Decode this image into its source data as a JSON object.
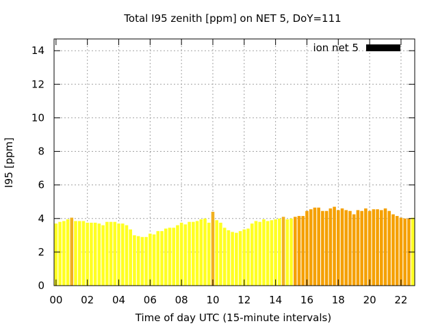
{
  "chart_data": {
    "type": "bar",
    "title": "Total I95 zenith [ppm] on NET 5, DoY=111",
    "xlabel": "Time of day UTC (15-minute intervals)",
    "ylabel": "I95 [ppm]",
    "xlim": [
      0,
      22.75
    ],
    "ylim": [
      0,
      14.7
    ],
    "x_ticks": [
      "00",
      "02",
      "04",
      "06",
      "08",
      "10",
      "12",
      "14",
      "16",
      "18",
      "20",
      "22"
    ],
    "x_tick_values": [
      0,
      2,
      4,
      6,
      8,
      10,
      12,
      14,
      16,
      18,
      20,
      22
    ],
    "y_ticks": [
      "0",
      "2",
      "4",
      "6",
      "8",
      "10",
      "12",
      "14"
    ],
    "y_tick_values": [
      0,
      2,
      4,
      6,
      8,
      10,
      12,
      14
    ],
    "grid": true,
    "legend": {
      "label": "ion net 5",
      "position": "top-right",
      "color": "#000000"
    },
    "colors": {
      "low": "#ffff22",
      "mid": "#f0b020",
      "high": "#f5a000"
    },
    "series": [
      {
        "x": [
          0,
          0.25,
          0.5,
          0.75,
          1,
          1.25,
          1.5,
          1.75,
          2,
          2.25,
          2.5,
          2.75,
          3,
          3.25,
          3.5,
          3.75,
          4,
          4.25,
          4.5,
          4.75,
          5,
          5.25,
          5.5,
          5.75,
          6,
          6.25,
          6.5,
          6.75,
          7,
          7.25,
          7.5,
          7.75,
          8,
          8.25,
          8.5,
          8.75,
          9,
          9.25,
          9.5,
          9.75,
          10,
          10.25,
          10.5,
          10.75,
          11,
          11.25,
          11.5,
          11.75,
          12,
          12.25,
          12.5,
          12.75,
          13,
          13.25,
          13.5,
          13.75,
          14,
          14.25,
          14.5,
          14.75,
          15,
          15.25,
          15.5,
          15.75,
          16,
          16.25,
          16.5,
          16.75,
          17,
          17.25,
          17.5,
          17.75,
          18,
          18.25,
          18.5,
          18.75,
          19,
          19.25,
          19.5,
          19.75,
          20,
          20.25,
          20.5,
          20.75,
          21,
          21.25,
          21.5,
          21.75,
          22,
          22.25,
          22.5,
          22.75
        ],
        "values": [
          3.7,
          3.8,
          3.85,
          3.95,
          4.05,
          3.85,
          3.85,
          3.85,
          3.75,
          3.75,
          3.75,
          3.7,
          3.6,
          3.8,
          3.8,
          3.8,
          3.7,
          3.7,
          3.6,
          3.35,
          3.0,
          2.95,
          2.9,
          2.9,
          3.1,
          3.05,
          3.25,
          3.25,
          3.4,
          3.45,
          3.45,
          3.6,
          3.75,
          3.65,
          3.8,
          3.8,
          3.85,
          3.95,
          4.0,
          3.75,
          4.4,
          3.9,
          3.75,
          3.45,
          3.3,
          3.2,
          3.15,
          3.25,
          3.35,
          3.4,
          3.7,
          3.85,
          3.8,
          3.95,
          3.85,
          3.9,
          3.95,
          4.0,
          4.1,
          3.95,
          4.0,
          4.1,
          4.15,
          4.15,
          4.45,
          4.55,
          4.65,
          4.65,
          4.45,
          4.45,
          4.6,
          4.7,
          4.5,
          4.6,
          4.5,
          4.45,
          4.25,
          4.5,
          4.45,
          4.6,
          4.45,
          4.55,
          4.55,
          4.5,
          4.6,
          4.45,
          4.25,
          4.15,
          4.05,
          4.0,
          4.0,
          4.05
        ],
        "colors": [
          "low",
          "low",
          "low",
          "low",
          "mid",
          "low",
          "low",
          "low",
          "low",
          "low",
          "low",
          "low",
          "low",
          "low",
          "low",
          "low",
          "low",
          "low",
          "low",
          "low",
          "low",
          "low",
          "low",
          "low",
          "low",
          "low",
          "low",
          "low",
          "low",
          "low",
          "low",
          "low",
          "low",
          "low",
          "low",
          "low",
          "low",
          "low",
          "low",
          "low",
          "mid",
          "low",
          "low",
          "low",
          "low",
          "low",
          "low",
          "low",
          "low",
          "low",
          "low",
          "low",
          "low",
          "low",
          "low",
          "low",
          "low",
          "low",
          "mid",
          "low",
          "low",
          "high",
          "high",
          "high",
          "high",
          "high",
          "high",
          "high",
          "high",
          "high",
          "high",
          "high",
          "high",
          "high",
          "high",
          "high",
          "high",
          "high",
          "high",
          "high",
          "high",
          "high",
          "high",
          "high",
          "high",
          "high",
          "high",
          "high",
          "high",
          "high",
          "high",
          "low"
        ]
      }
    ]
  }
}
